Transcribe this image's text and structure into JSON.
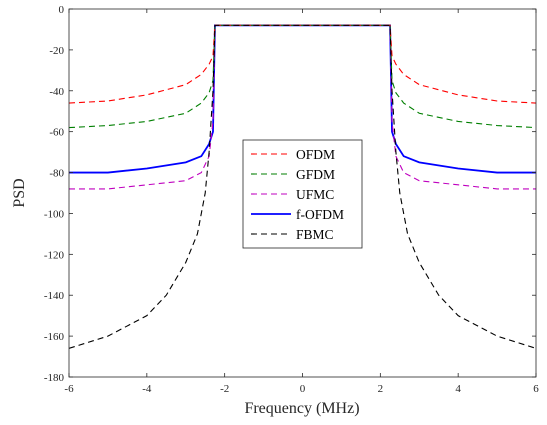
{
  "chart_data": {
    "type": "line",
    "xlabel": "Frequency (MHz)",
    "ylabel": "PSD",
    "xlim": [
      -6,
      6
    ],
    "ylim": [
      -180,
      0
    ],
    "xticks": [
      -6,
      -4,
      -2,
      0,
      2,
      4,
      6
    ],
    "yticks": [
      0,
      -20,
      -40,
      -60,
      -80,
      -100,
      -120,
      -140,
      -160,
      -180
    ],
    "grid": false,
    "legend_position": "center",
    "series": [
      {
        "name": "OFDM",
        "color": "#ff0000",
        "style": "dashed",
        "x": [
          -6,
          -5,
          -4,
          -3,
          -2.6,
          -2.4,
          -2.3,
          -2.25,
          2.25,
          2.3,
          2.4,
          2.6,
          3,
          4,
          5,
          6
        ],
        "y": [
          -46,
          -45,
          -42,
          -37,
          -32,
          -27,
          -23,
          -8,
          -8,
          -23,
          -27,
          -32,
          -37,
          -42,
          -45,
          -46
        ]
      },
      {
        "name": "GFDM",
        "color": "#007f00",
        "style": "dashed",
        "x": [
          -6,
          -5,
          -4,
          -3,
          -2.6,
          -2.4,
          -2.3,
          -2.25,
          2.25,
          2.3,
          2.4,
          2.6,
          3,
          4,
          5,
          6
        ],
        "y": [
          -58,
          -57,
          -55,
          -51,
          -46,
          -41,
          -35,
          -8,
          -8,
          -35,
          -41,
          -46,
          -51,
          -55,
          -57,
          -58
        ]
      },
      {
        "name": "UFMC",
        "color": "#bf00bf",
        "style": "dashed",
        "x": [
          -6,
          -5,
          -4,
          -3,
          -2.6,
          -2.4,
          -2.3,
          -2.25,
          2.25,
          2.3,
          2.4,
          2.6,
          3,
          4,
          5,
          6
        ],
        "y": [
          -88,
          -88,
          -86,
          -84,
          -80,
          -72,
          -55,
          -8,
          -8,
          -55,
          -72,
          -80,
          -84,
          -86,
          -88,
          -88
        ]
      },
      {
        "name": "f-OFDM",
        "color": "#0000ff",
        "style": "solid",
        "x": [
          -6,
          -5,
          -4,
          -3,
          -2.6,
          -2.4,
          -2.3,
          -2.25,
          2.25,
          2.3,
          2.4,
          2.6,
          3,
          4,
          5,
          6
        ],
        "y": [
          -80,
          -80,
          -78,
          -75,
          -72,
          -66,
          -60,
          -8,
          -8,
          -60,
          -66,
          -72,
          -75,
          -78,
          -80,
          -80
        ]
      },
      {
        "name": "FBMC",
        "color": "#000000",
        "style": "dashed",
        "x": [
          -6,
          -5,
          -4,
          -3.5,
          -3,
          -2.7,
          -2.5,
          -2.4,
          -2.3,
          -2.25,
          2.25,
          2.3,
          2.4,
          2.5,
          2.7,
          3,
          3.5,
          4,
          5,
          6
        ],
        "y": [
          -166,
          -160,
          -150,
          -140,
          -124,
          -110,
          -90,
          -70,
          -40,
          -8,
          -8,
          -40,
          -70,
          -90,
          -110,
          -124,
          -140,
          -150,
          -160,
          -166
        ]
      }
    ]
  },
  "legend": {
    "items": [
      {
        "label": "OFDM",
        "color": "#ff0000",
        "style": "dashed"
      },
      {
        "label": "GFDM",
        "color": "#007f00",
        "style": "dashed"
      },
      {
        "label": "UFMC",
        "color": "#bf00bf",
        "style": "dashed"
      },
      {
        "label": "f-OFDM",
        "color": "#0000ff",
        "style": "solid"
      },
      {
        "label": "FBMC",
        "color": "#000000",
        "style": "dashed"
      }
    ]
  }
}
